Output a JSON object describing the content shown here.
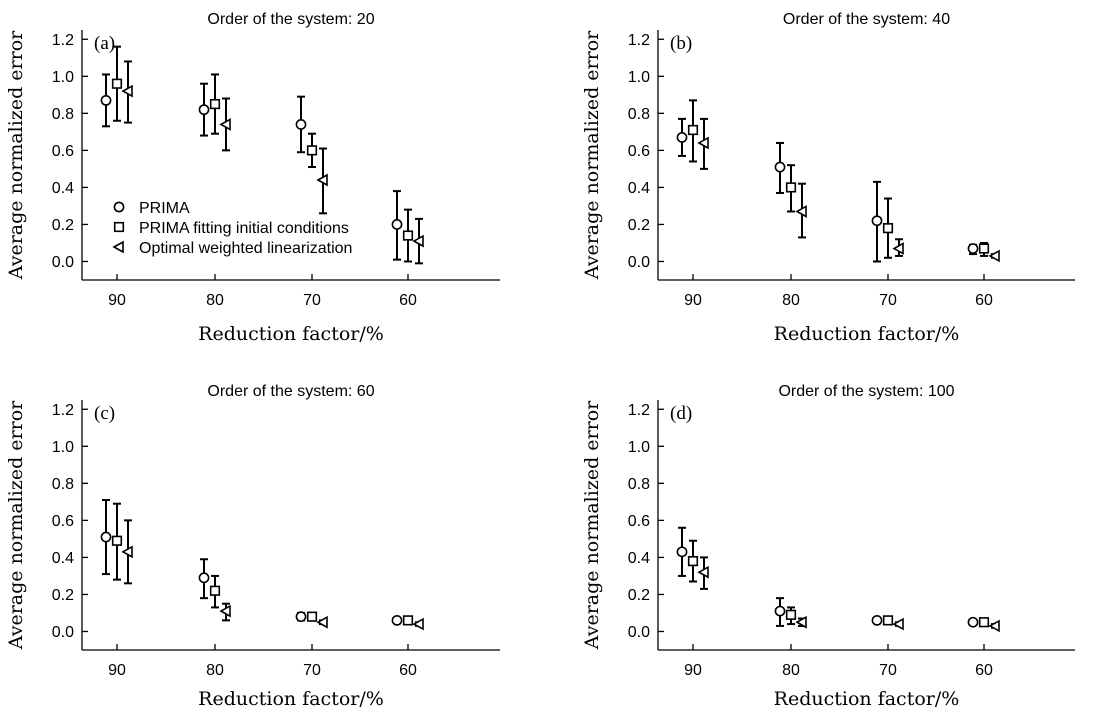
{
  "legend": [
    {
      "marker": "circle",
      "label": "PRIMA"
    },
    {
      "marker": "square",
      "label": "PRIMA fitting initial conditions"
    },
    {
      "marker": "triangle-left",
      "label": "Optimal weighted linearization"
    }
  ],
  "chart_data": [
    {
      "type": "scatter",
      "panel_label": "(a)",
      "title": "Order of the system: 20",
      "xlabel": "Reduction factor/%",
      "ylabel": "Average normalized error",
      "categories": [
        "90",
        "80",
        "70",
        "60"
      ],
      "ylim": [
        -0.1,
        1.25
      ],
      "yticks": [
        "0.0",
        "0.2",
        "0.4",
        "0.6",
        "0.8",
        "1.0",
        "1.2"
      ],
      "show_legend": true,
      "series": [
        {
          "name": "PRIMA",
          "marker": "circle",
          "values": [
            0.87,
            0.82,
            0.74,
            0.2
          ],
          "err_low": [
            0.73,
            0.68,
            0.59,
            0.01
          ],
          "err_high": [
            1.01,
            0.96,
            0.89,
            0.38
          ]
        },
        {
          "name": "PRIMA fitting initial conditions",
          "marker": "square",
          "values": [
            0.96,
            0.85,
            0.6,
            0.14
          ],
          "err_low": [
            0.76,
            0.69,
            0.51,
            0.0
          ],
          "err_high": [
            1.16,
            1.01,
            0.69,
            0.28
          ]
        },
        {
          "name": "Optimal weighted linearization",
          "marker": "triangle-left",
          "values": [
            0.92,
            0.74,
            0.44,
            0.11
          ],
          "err_low": [
            0.75,
            0.6,
            0.26,
            -0.01
          ],
          "err_high": [
            1.08,
            0.88,
            0.61,
            0.23
          ]
        }
      ]
    },
    {
      "type": "scatter",
      "panel_label": "(b)",
      "title": "Order of the system: 40",
      "xlabel": "Reduction factor/%",
      "ylabel": "Average normalized error",
      "categories": [
        "90",
        "80",
        "70",
        "60"
      ],
      "ylim": [
        -0.1,
        1.25
      ],
      "yticks": [
        "0.0",
        "0.2",
        "0.4",
        "0.6",
        "0.8",
        "1.0",
        "1.2"
      ],
      "show_legend": false,
      "series": [
        {
          "name": "PRIMA",
          "marker": "circle",
          "values": [
            0.67,
            0.51,
            0.22,
            0.07
          ],
          "err_low": [
            0.57,
            0.37,
            0.0,
            0.04
          ],
          "err_high": [
            0.77,
            0.64,
            0.43,
            0.09
          ]
        },
        {
          "name": "PRIMA fitting initial conditions",
          "marker": "square",
          "values": [
            0.71,
            0.4,
            0.18,
            0.07
          ],
          "err_low": [
            0.54,
            0.27,
            0.02,
            0.03
          ],
          "err_high": [
            0.87,
            0.52,
            0.34,
            0.1
          ]
        },
        {
          "name": "Optimal weighted linearization",
          "marker": "triangle-left",
          "values": [
            0.64,
            0.27,
            0.07,
            0.03
          ],
          "err_low": [
            0.5,
            0.13,
            0.03,
            0.02
          ],
          "err_high": [
            0.77,
            0.42,
            0.12,
            0.04
          ]
        }
      ]
    },
    {
      "type": "scatter",
      "panel_label": "(c)",
      "title": "Order of the system: 60",
      "xlabel": "Reduction factor/%",
      "ylabel": "Average normalized error",
      "categories": [
        "90",
        "80",
        "70",
        "60"
      ],
      "ylim": [
        -0.1,
        1.25
      ],
      "yticks": [
        "0.0",
        "0.2",
        "0.4",
        "0.6",
        "0.8",
        "1.0",
        "1.2"
      ],
      "show_legend": false,
      "series": [
        {
          "name": "PRIMA",
          "marker": "circle",
          "values": [
            0.51,
            0.29,
            0.08,
            0.06
          ],
          "err_low": [
            0.31,
            0.18,
            0.06,
            0.05
          ],
          "err_high": [
            0.71,
            0.39,
            0.1,
            0.07
          ]
        },
        {
          "name": "PRIMA fitting initial conditions",
          "marker": "square",
          "values": [
            0.49,
            0.22,
            0.08,
            0.06
          ],
          "err_low": [
            0.28,
            0.13,
            0.06,
            0.05
          ],
          "err_high": [
            0.69,
            0.3,
            0.1,
            0.07
          ]
        },
        {
          "name": "Optimal weighted linearization",
          "marker": "triangle-left",
          "values": [
            0.43,
            0.11,
            0.05,
            0.04
          ],
          "err_low": [
            0.26,
            0.06,
            0.04,
            0.03
          ],
          "err_high": [
            0.6,
            0.15,
            0.06,
            0.05
          ]
        }
      ]
    },
    {
      "type": "scatter",
      "panel_label": "(d)",
      "title": "Order of the system: 100",
      "xlabel": "Reduction factor/%",
      "ylabel": "Average normalized error",
      "categories": [
        "90",
        "80",
        "70",
        "60"
      ],
      "ylim": [
        -0.1,
        1.25
      ],
      "yticks": [
        "0.0",
        "0.2",
        "0.4",
        "0.6",
        "0.8",
        "1.0",
        "1.2"
      ],
      "show_legend": false,
      "series": [
        {
          "name": "PRIMA",
          "marker": "circle",
          "values": [
            0.43,
            0.11,
            0.06,
            0.05
          ],
          "err_low": [
            0.3,
            0.03,
            0.05,
            0.04
          ],
          "err_high": [
            0.56,
            0.18,
            0.07,
            0.06
          ]
        },
        {
          "name": "PRIMA fitting initial conditions",
          "marker": "square",
          "values": [
            0.38,
            0.09,
            0.06,
            0.05
          ],
          "err_low": [
            0.27,
            0.04,
            0.05,
            0.04
          ],
          "err_high": [
            0.49,
            0.13,
            0.07,
            0.06
          ]
        },
        {
          "name": "Optimal weighted linearization",
          "marker": "triangle-left",
          "values": [
            0.32,
            0.05,
            0.04,
            0.03
          ],
          "err_low": [
            0.23,
            0.03,
            0.03,
            0.02
          ],
          "err_high": [
            0.4,
            0.07,
            0.05,
            0.04
          ]
        }
      ]
    }
  ]
}
